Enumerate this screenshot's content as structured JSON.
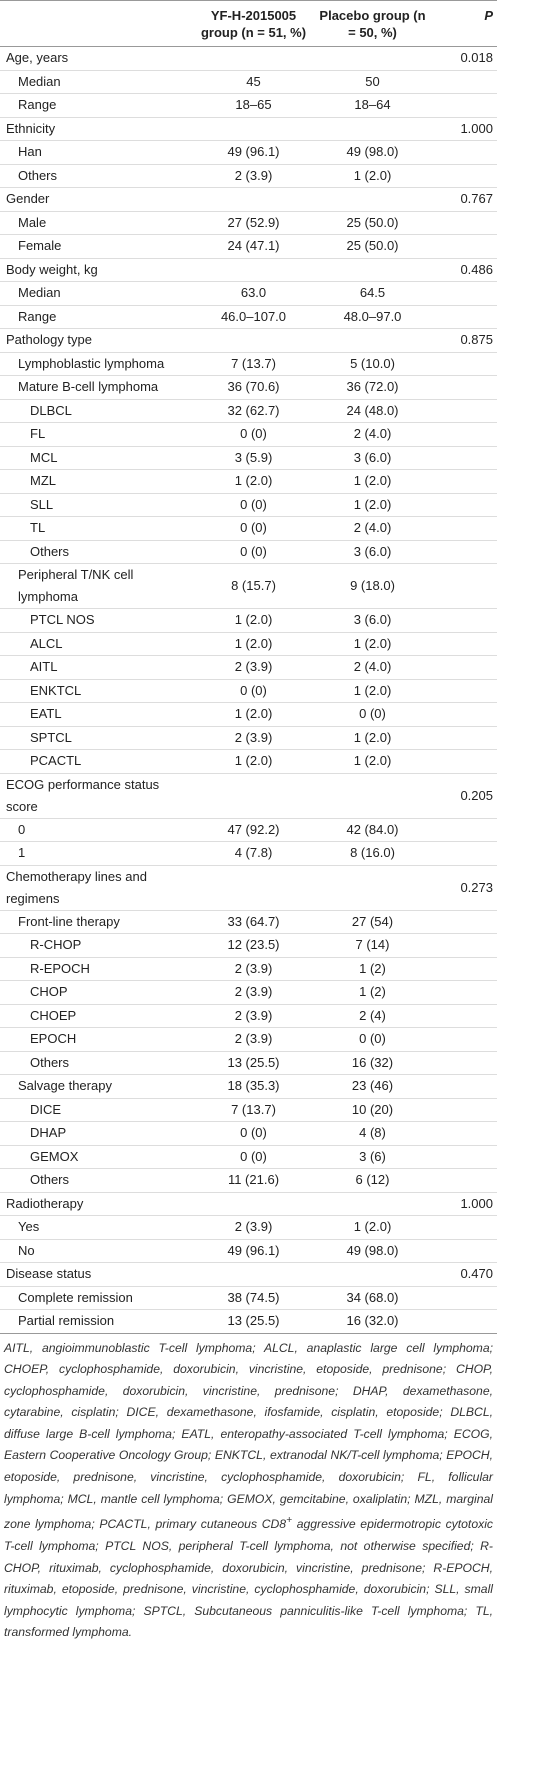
{
  "table": {
    "header": [
      "YF-H-2015005 group (n = 51, %)",
      "Placebo group (n = 50, %)",
      "P"
    ],
    "rows": [
      {
        "label": "Age, years",
        "p": "0.018"
      },
      {
        "label": "Median",
        "yf": "45",
        "placebo": "50"
      },
      {
        "label": "Range",
        "yf": "18–65",
        "placebo": "18–64"
      },
      {
        "label": "Ethnicity",
        "p": "1.000"
      },
      {
        "label": "Han",
        "yf": "49 (96.1)",
        "placebo": "49 (98.0)"
      },
      {
        "label": "Others",
        "yf": "2 (3.9)",
        "placebo": "1 (2.0)"
      },
      {
        "label": "Gender",
        "p": "0.767"
      },
      {
        "label": "Male",
        "yf": "27 (52.9)",
        "placebo": "25 (50.0)"
      },
      {
        "label": "Female",
        "yf": "24 (47.1)",
        "placebo": "25 (50.0)"
      },
      {
        "label": "Body weight, kg",
        "p": "0.486"
      },
      {
        "label": "Median",
        "yf": "63.0",
        "placebo": "64.5"
      },
      {
        "label": "Range",
        "yf": "46.0–107.0",
        "placebo": "48.0–97.0"
      },
      {
        "label": "Pathology type",
        "p": "0.875"
      },
      {
        "label": "Lymphoblastic lymphoma",
        "yf": "7 (13.7)",
        "placebo": "5 (10.0)"
      },
      {
        "label": "Mature B-cell lymphoma",
        "yf": "36 (70.6)",
        "placebo": "36 (72.0)"
      },
      {
        "label": "DLBCL",
        "yf": "32 (62.7)",
        "placebo": "24 (48.0)"
      },
      {
        "label": "FL",
        "yf": "0 (0)",
        "placebo": "2 (4.0)"
      },
      {
        "label": "MCL",
        "yf": "3 (5.9)",
        "placebo": "3 (6.0)"
      },
      {
        "label": "MZL",
        "yf": "1 (2.0)",
        "placebo": "1 (2.0)"
      },
      {
        "label": "SLL",
        "yf": "0 (0)",
        "placebo": "1 (2.0)"
      },
      {
        "label": "TL",
        "yf": "0 (0)",
        "placebo": "2 (4.0)"
      },
      {
        "label": "Others",
        "yf": "0 (0)",
        "placebo": "3 (6.0)"
      },
      {
        "label": "Peripheral T/NK cell lymphoma",
        "yf": "8 (15.7)",
        "placebo": "9 (18.0)"
      },
      {
        "label": "PTCL NOS",
        "yf": "1 (2.0)",
        "placebo": "3 (6.0)"
      },
      {
        "label": "ALCL",
        "yf": "1 (2.0)",
        "placebo": "1 (2.0)"
      },
      {
        "label": "AITL",
        "yf": "2 (3.9)",
        "placebo": "2 (4.0)"
      },
      {
        "label": "ENKTCL",
        "yf": "0 (0)",
        "placebo": "1 (2.0)"
      },
      {
        "label": "EATL",
        "yf": "1 (2.0)",
        "placebo": "0 (0)"
      },
      {
        "label": "SPTCL",
        "yf": "2 (3.9)",
        "placebo": "1 (2.0)"
      },
      {
        "label": "PCACTL",
        "yf": "1 (2.0)",
        "placebo": "1 (2.0)"
      },
      {
        "label": "ECOG performance status score",
        "p": "0.205"
      },
      {
        "label": "0",
        "yf": "47 (92.2)",
        "placebo": "42 (84.0)"
      },
      {
        "label": "1",
        "yf": "4 (7.8)",
        "placebo": "8 (16.0)"
      },
      {
        "label": "Chemotherapy lines and regimens",
        "p": "0.273"
      },
      {
        "label": "Front-line therapy",
        "yf": "33 (64.7)",
        "placebo": "27 (54)"
      },
      {
        "label": "R-CHOP",
        "yf": "12 (23.5)",
        "placebo": "7 (14)"
      },
      {
        "label": "R-EPOCH",
        "yf": "2 (3.9)",
        "placebo": "1 (2)"
      },
      {
        "label": "CHOP",
        "yf": "2 (3.9)",
        "placebo": "1 (2)"
      },
      {
        "label": "CHOEP",
        "yf": "2 (3.9)",
        "placebo": "2 (4)"
      },
      {
        "label": "EPOCH",
        "yf": "2 (3.9)",
        "placebo": "0 (0)"
      },
      {
        "label": "Others",
        "yf": "13 (25.5)",
        "placebo": "16 (32)"
      },
      {
        "label": "Salvage therapy",
        "yf": "18 (35.3)",
        "placebo": "23 (46)"
      },
      {
        "label": "DICE",
        "yf": "7 (13.7)",
        "placebo": "10 (20)"
      },
      {
        "label": "DHAP",
        "yf": "0 (0)",
        "placebo": "4 (8)"
      },
      {
        "label": "GEMOX",
        "yf": "0 (0)",
        "placebo": "3 (6)"
      },
      {
        "label": "Others",
        "yf": "11 (21.6)",
        "placebo": "6 (12)"
      },
      {
        "label": "Radiotherapy",
        "p": "1.000"
      },
      {
        "label": "Yes",
        "yf": "2 (3.9)",
        "placebo": "1 (2.0)"
      },
      {
        "label": "No",
        "yf": "49 (96.1)",
        "placebo": "49 (98.0)"
      },
      {
        "label": "Disease status",
        "p": "0.470"
      },
      {
        "label": "Complete remission",
        "yf": "38 (74.5)",
        "placebo": "34 (68.0)"
      },
      {
        "label": "Partial remission",
        "yf": "13 (25.5)",
        "placebo": "16 (32.0)"
      }
    ],
    "footnote": [
      "AITL, angioimmunoblastic T-cell lymphoma; ALCL, anaplastic large cell lymphoma; CHOEP, cyclophosphamide, doxorubicin, vincristine, etoposide, prednisone; CHOP, cyclophosphamide, doxorubicin, vincristine, prednisone; DHAP, dexamethasone, cytarabine, cisplatin; DICE, dexamethasone, ifosfamide, cisplatin, etoposide; DLBCL, diffuse large B-cell lymphoma; EATL, enteropathy-associated T-cell lymphoma; ECOG, Eastern Cooperative Oncology Group; ENKTCL, extranodal NK/T-cell lymphoma; EPOCH, etoposide, prednisone, vincristine, cyclophosphamide, doxorubicin; FL, follicular lymphoma; MCL, mantle cell lymphoma; GEMOX, gemcitabine, oxaliplatin; MZL, marginal zone lymphoma; PCACTL, primary cutaneous CD8",
      "+",
      " aggressive epidermotropic cytotoxic T-cell lymphoma; PTCL NOS, peripheral T-cell lymphoma, not otherwise specified; R-CHOP, rituximab, cyclophosphamide, doxorubicin, vincristine, prednisone; R-EPOCH, rituximab, etoposide, prednisone, vincristine, cyclophosphamide, doxorubicin; SLL, small lymphocytic lymphoma; SPTCL, Subcutaneous panniculitis-like T-cell lymphoma; TL, transformed lymphoma."
    ]
  }
}
